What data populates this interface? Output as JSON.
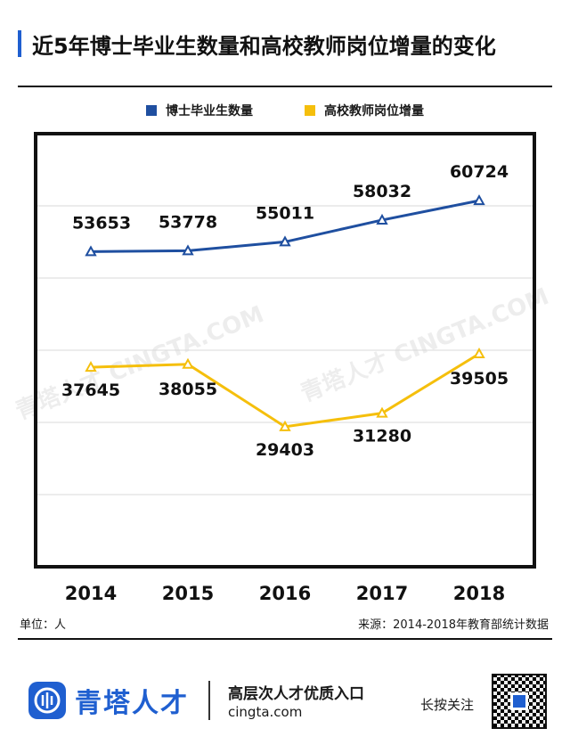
{
  "title": "近5年博士毕业生数量和高校教师岗位增量的变化",
  "unit": "单位：人",
  "source": "来源：2014-2018年教育部统计数据",
  "watermark": "青塔人才 CINGTA.COM",
  "footer": {
    "brand": "青塔人才",
    "slogan": "高层次人才优质入口",
    "site": "cingta.com",
    "follow": "长按关注"
  },
  "colors": {
    "phd": "#1f4fa0",
    "teacher": "#f5bf0c",
    "accent": "#1f5fd0"
  },
  "chart_data": {
    "type": "line",
    "categories": [
      "2014",
      "2015",
      "2016",
      "2017",
      "2018"
    ],
    "series": [
      {
        "name": "博士毕业生数量",
        "values": [
          53653,
          53778,
          55011,
          58032,
          60724
        ]
      },
      {
        "name": "高校教师岗位增量",
        "values": [
          37645,
          38055,
          29403,
          31280,
          39505
        ]
      }
    ],
    "ylim": [
      10000,
      70000
    ],
    "yticks": [
      10000,
      20000,
      30000,
      40000,
      50000,
      60000,
      70000
    ],
    "grid": true,
    "legend": "top-center",
    "marker": "triangle"
  }
}
